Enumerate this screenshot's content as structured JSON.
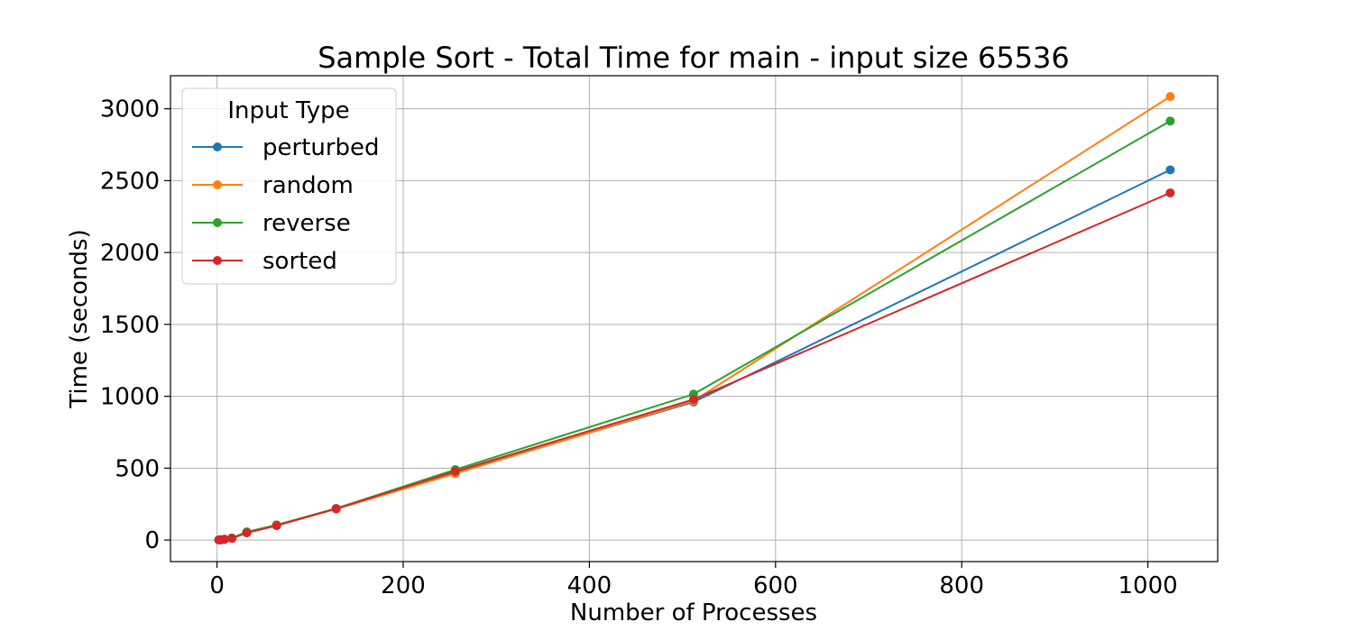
{
  "chart_data": {
    "type": "line",
    "title": "Sample Sort - Total Time for main - input size 65536",
    "xlabel": "Number of Processes",
    "ylabel": "Time (seconds)",
    "xlim": [
      -50,
      1075
    ],
    "ylim": [
      -150,
      3230
    ],
    "xticks": [
      0,
      200,
      400,
      600,
      800,
      1000
    ],
    "yticks": [
      0,
      500,
      1000,
      1500,
      2000,
      2500,
      3000
    ],
    "grid": true,
    "legend": {
      "title": "Input Type",
      "placement": "top-left"
    },
    "x": [
      2,
      4,
      8,
      16,
      32,
      64,
      128,
      256,
      512,
      1024
    ],
    "series": [
      {
        "name": "perturbed",
        "color": "#1f77b4",
        "values": [
          1,
          2,
          5,
          12,
          52,
          102,
          218,
          470,
          960,
          2575
        ]
      },
      {
        "name": "random",
        "color": "#ff7f0e",
        "values": [
          1,
          2,
          5,
          13,
          55,
          104,
          216,
          462,
          968,
          3085
        ]
      },
      {
        "name": "reverse",
        "color": "#2ca02c",
        "values": [
          1,
          2,
          5,
          14,
          57,
          105,
          220,
          490,
          1015,
          2915
        ]
      },
      {
        "name": "sorted",
        "color": "#d62728",
        "values": [
          1,
          2,
          5,
          12,
          50,
          100,
          218,
          478,
          978,
          2415
        ]
      }
    ]
  }
}
